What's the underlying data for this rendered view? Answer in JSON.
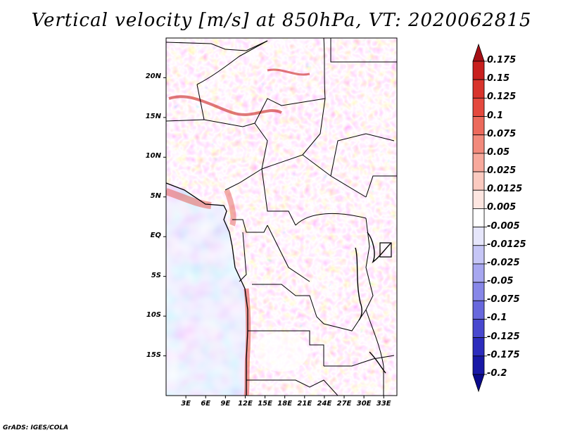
{
  "title": "Vertical velocity [m/s] at 850hPa, VT: 2020062815",
  "credit": "GrADS: IGES/COLA",
  "map": {
    "lat_labels": [
      "20N",
      "15N",
      "10N",
      "5N",
      "EQ",
      "5S",
      "10S",
      "15S"
    ],
    "lon_labels": [
      "3E",
      "6E",
      "9E",
      "12E",
      "15E",
      "18E",
      "21E",
      "24E",
      "27E",
      "30E",
      "33E"
    ],
    "lat_range": [
      -20,
      25
    ],
    "lon_range": [
      0,
      35
    ]
  },
  "colorbar": {
    "levels": [
      "0.175",
      "0.15",
      "0.125",
      "0.1",
      "0.075",
      "0.05",
      "0.025",
      "0.0125",
      "0.005",
      "-0.005",
      "-0.0125",
      "-0.025",
      "-0.05",
      "-0.075",
      "-0.1",
      "-0.125",
      "-0.175",
      "-0.2"
    ],
    "colors": [
      "#a50f15",
      "#c8201e",
      "#d8342c",
      "#e4493e",
      "#ec6a5c",
      "#f28a7c",
      "#f7a99c",
      "#fbcac0",
      "#fde6e1",
      "#ffffff",
      "#e6e6fb",
      "#c6c6f6",
      "#a7a7f0",
      "#8787e8",
      "#6868dd",
      "#4848cf",
      "#2c2cbd",
      "#1818a6",
      "#0a0a8c"
    ]
  }
}
